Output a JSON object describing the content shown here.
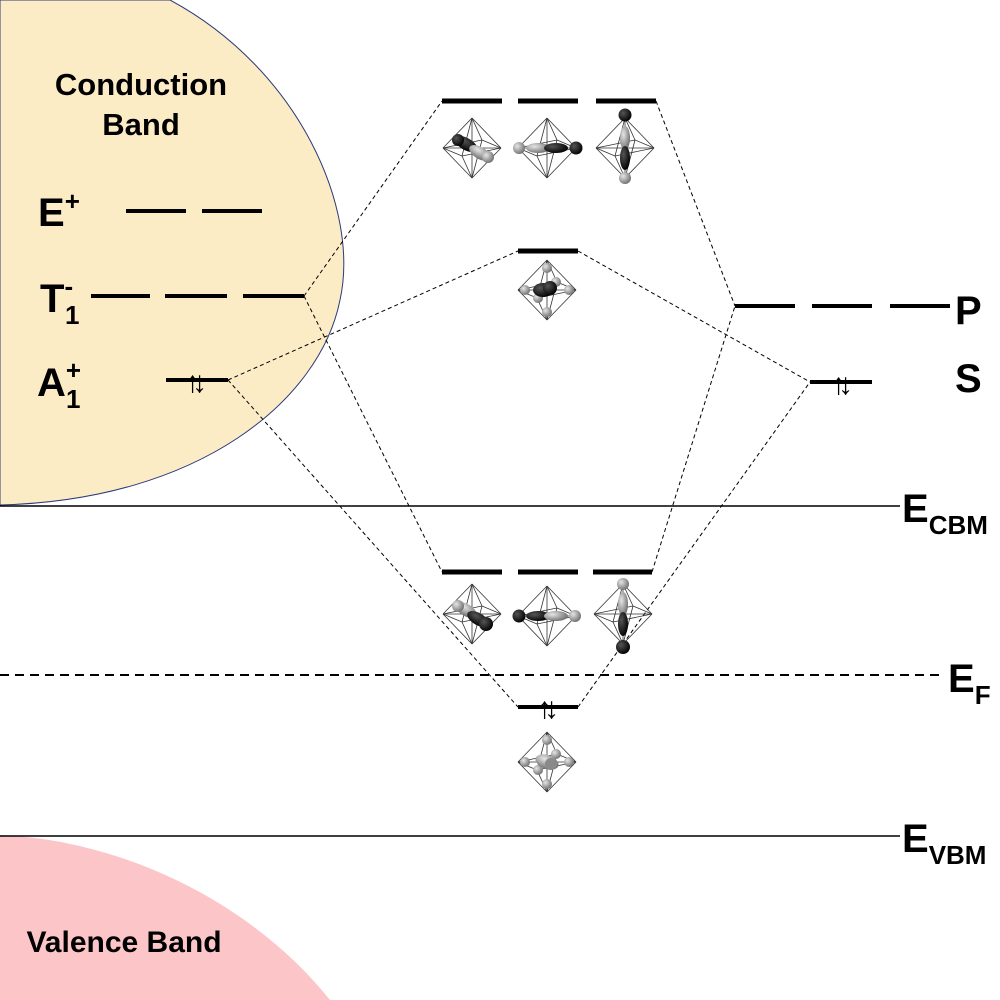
{
  "bands": {
    "conduction": {
      "line1": "Conduction",
      "line2": "Band",
      "color": "#fcecc6"
    },
    "valence": {
      "label": "Valence Band",
      "color": "#fcc6c8"
    }
  },
  "left_levels": {
    "e_plus": {
      "base": "E",
      "sup": "+"
    },
    "t1_minus": {
      "base": "T",
      "sup": "-",
      "sub": "1"
    },
    "a1_plus": {
      "base": "A",
      "sup": "+",
      "sub": "1"
    }
  },
  "right_levels": {
    "p": "P",
    "s": "S"
  },
  "reference_levels": {
    "cbm": {
      "base": "E",
      "sub": "CBM"
    },
    "fermi": {
      "base": "E",
      "sub": "F"
    },
    "vbm": {
      "base": "E",
      "sub": "VBM"
    }
  },
  "electrons": {
    "pair_symbol_up": "↑",
    "pair_symbol_down": "↓"
  },
  "colors": {
    "line": "#000000",
    "band_edge": "#2b3a7a",
    "orbital_dark": "#111111",
    "orbital_light": "#9a9a9a"
  }
}
